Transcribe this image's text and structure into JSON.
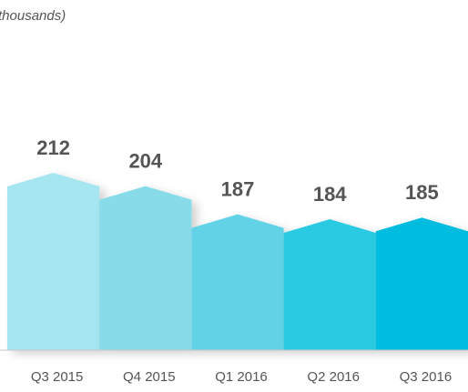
{
  "chart_data": {
    "type": "bar",
    "subtitle": "thousands)",
    "categories": [
      "Q3 2015",
      "Q4 2015",
      "Q1 2016",
      "Q2 2016",
      "Q3 2016"
    ],
    "values": [
      212,
      204,
      187,
      184,
      185
    ],
    "colors": [
      "#a6e6f0",
      "#88dce9",
      "#62d3e7",
      "#2ccae3",
      "#00bcdf"
    ],
    "ylim": [
      105,
      240
    ]
  }
}
